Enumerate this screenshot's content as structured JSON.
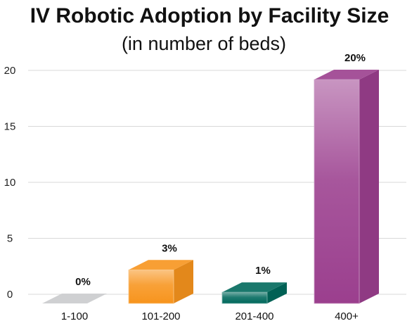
{
  "chart_data": {
    "type": "bar",
    "title": "IV Robotic Adoption by Facility Size",
    "subtitle": "(in number of beds)",
    "categories": [
      "1-100",
      "101-200",
      "201-400",
      "400+"
    ],
    "values": [
      0,
      3,
      1,
      20
    ],
    "data_labels": [
      "0%",
      "3%",
      "1%",
      "20%"
    ],
    "ylim": [
      0,
      20
    ],
    "yticks": [
      0,
      5,
      10,
      15,
      20
    ],
    "ytick_labels": [
      "0",
      "5",
      "10",
      "15",
      "20"
    ],
    "grid": true,
    "legend": "none",
    "colors": [
      "#cfd0d2",
      "#f7941d",
      "#00695c",
      "#9b3f8e"
    ]
  }
}
